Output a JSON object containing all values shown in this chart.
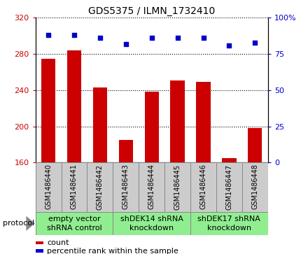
{
  "title": "GDS5375 / ILMN_1732410",
  "samples": [
    "GSM1486440",
    "GSM1486441",
    "GSM1486442",
    "GSM1486443",
    "GSM1486444",
    "GSM1486445",
    "GSM1486446",
    "GSM1486447",
    "GSM1486448"
  ],
  "count_values": [
    275,
    284,
    243,
    185,
    238,
    251,
    249,
    165,
    198
  ],
  "percentile_values": [
    88,
    88,
    86,
    82,
    86,
    86,
    86,
    81,
    83
  ],
  "ylim_left": [
    160,
    320
  ],
  "ylim_right": [
    0,
    100
  ],
  "yticks_left": [
    160,
    200,
    240,
    280,
    320
  ],
  "yticks_right": [
    0,
    25,
    50,
    75,
    100
  ],
  "ytick_labels_left": [
    "160",
    "200",
    "240",
    "280",
    "320"
  ],
  "ytick_labels_right": [
    "0",
    "25",
    "50",
    "75",
    "100%"
  ],
  "bar_color": "#cc0000",
  "dot_color": "#0000cc",
  "groups": [
    {
      "label": "empty vector\nshRNA control",
      "start": 0,
      "end": 3,
      "color": "#90ee90"
    },
    {
      "label": "shDEK14 shRNA\nknockdown",
      "start": 3,
      "end": 6,
      "color": "#90ee90"
    },
    {
      "label": "shDEK17 shRNA\nknockdown",
      "start": 6,
      "end": 9,
      "color": "#90ee90"
    }
  ],
  "legend_count_label": "count",
  "legend_percentile_label": "percentile rank within the sample",
  "protocol_label": "protocol",
  "bar_color_hex": "#cc0000",
  "dot_color_hex": "#0000cc",
  "sample_bg_color": "#cccccc",
  "sample_border_color": "#888888",
  "title_fontsize": 10,
  "tick_fontsize": 8,
  "sample_fontsize": 7,
  "group_fontsize": 8,
  "legend_fontsize": 8
}
